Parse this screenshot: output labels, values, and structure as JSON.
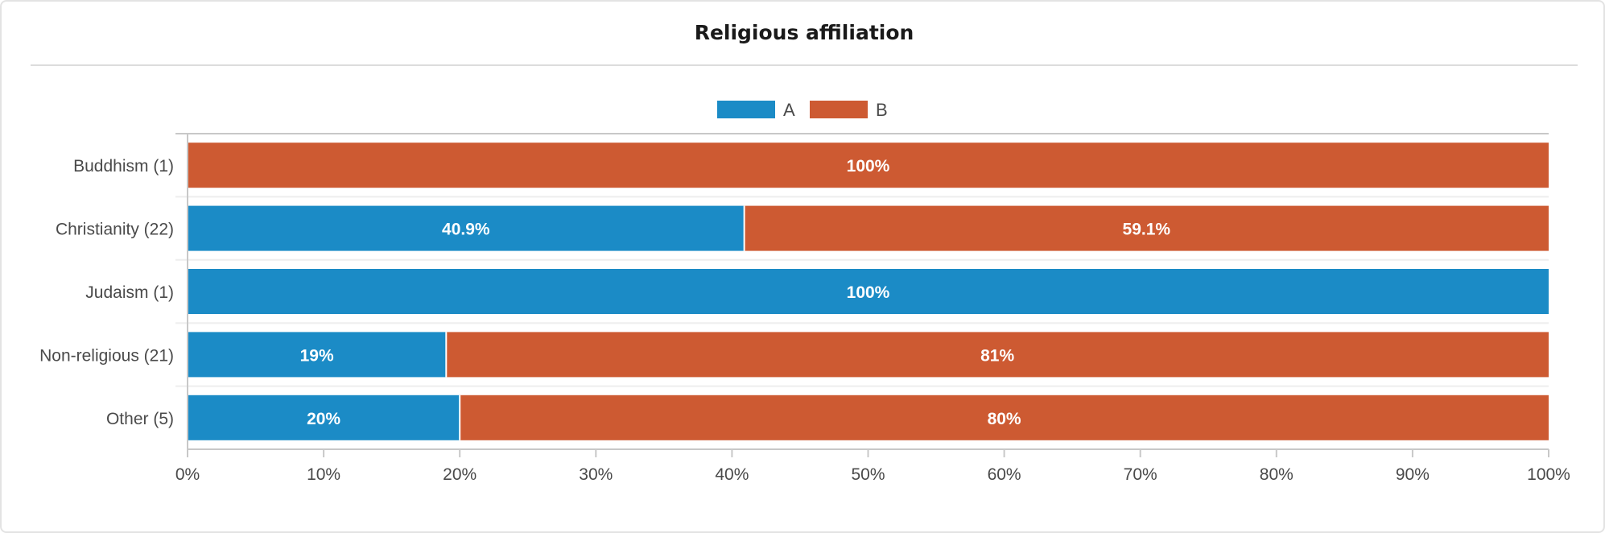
{
  "colors": {
    "A": "#1b8bc6",
    "B": "#cd5a32"
  },
  "chart_data": {
    "type": "bar",
    "orientation": "horizontal",
    "stacked": "percent",
    "title": "Religious affiliation",
    "categories": [
      "Buddhism (1)",
      "Christianity (22)",
      "Judaism (1)",
      "Non-religious (21)",
      "Other (5)"
    ],
    "series": [
      {
        "name": "A",
        "values": [
          0,
          40.9,
          100,
          19,
          20
        ],
        "labels": [
          "",
          "40.9%",
          "100%",
          "19%",
          "20%"
        ]
      },
      {
        "name": "B",
        "values": [
          100,
          59.1,
          0,
          81,
          80
        ],
        "labels": [
          "100%",
          "59.1%",
          "",
          "81%",
          "80%"
        ]
      }
    ],
    "xlim": [
      0,
      100
    ],
    "xticks": [
      "0%",
      "10%",
      "20%",
      "30%",
      "40%",
      "50%",
      "60%",
      "70%",
      "80%",
      "90%",
      "100%"
    ],
    "legend": "top-center",
    "grid": false
  }
}
